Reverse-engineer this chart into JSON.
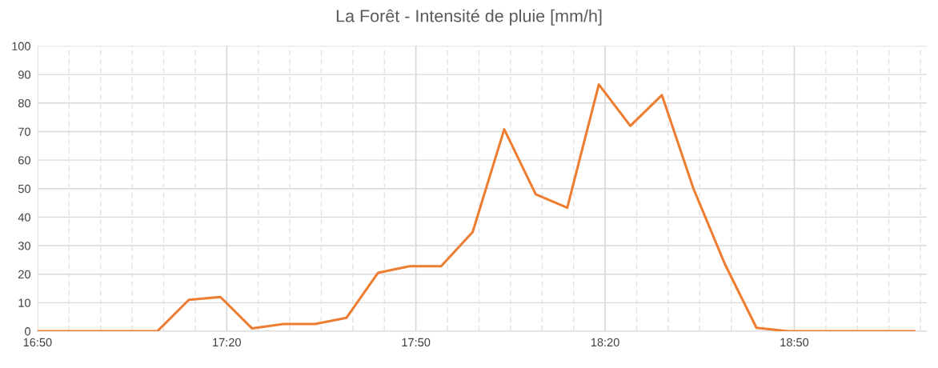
{
  "chart_data": {
    "type": "line",
    "title": "La Forêt - Intensité de pluie [mm/h]",
    "x": [
      16.8333,
      17.15,
      17.2333,
      17.3167,
      17.4,
      17.4833,
      17.5667,
      17.65,
      17.7333,
      17.8167,
      17.9,
      17.9833,
      18.0667,
      18.15,
      18.2333,
      18.3167,
      18.4,
      18.4833,
      18.5667,
      18.65,
      18.7333,
      18.8167,
      18.9,
      18.9833,
      19.0667,
      19.15
    ],
    "series": [
      {
        "color": "#ed7d31",
        "values": [
          0,
          0,
          11,
          12,
          1,
          2.5,
          2.5,
          4.7,
          20.5,
          22.8,
          22.8,
          34.8,
          70.8,
          48,
          43.3,
          86.5,
          72,
          82.8,
          50,
          23.5,
          1.2,
          0,
          0,
          0,
          0,
          0
        ]
      }
    ],
    "xlim": [
      16.8333,
      19.1833
    ],
    "xticks": [
      {
        "value": 16.8333,
        "label": "16:50"
      },
      {
        "value": 16.9167,
        "label": null
      },
      {
        "value": 17,
        "label": null
      },
      {
        "value": 17.0833,
        "label": null
      },
      {
        "value": 17.1667,
        "label": null
      },
      {
        "value": 17.25,
        "label": null
      },
      {
        "value": 17.3333,
        "label": "17:20"
      },
      {
        "value": 17.4167,
        "label": null
      },
      {
        "value": 17.5,
        "label": null
      },
      {
        "value": 17.5833,
        "label": null
      },
      {
        "value": 17.6667,
        "label": null
      },
      {
        "value": 17.75,
        "label": null
      },
      {
        "value": 17.8333,
        "label": "17:50"
      },
      {
        "value": 17.9167,
        "label": null
      },
      {
        "value": 18,
        "label": null
      },
      {
        "value": 18.0833,
        "label": null
      },
      {
        "value": 18.1667,
        "label": null
      },
      {
        "value": 18.25,
        "label": null
      },
      {
        "value": 18.3333,
        "label": "18:20"
      },
      {
        "value": 18.4167,
        "label": null
      },
      {
        "value": 18.5,
        "label": null
      },
      {
        "value": 18.5833,
        "label": null
      },
      {
        "value": 18.6667,
        "label": null
      },
      {
        "value": 18.75,
        "label": null
      },
      {
        "value": 18.8333,
        "label": "18:50"
      },
      {
        "value": 18.9167,
        "label": null
      },
      {
        "value": 19,
        "label": null
      },
      {
        "value": 19.0833,
        "label": null
      },
      {
        "value": 19.1667,
        "label": null
      }
    ],
    "ylim": [
      0,
      100
    ],
    "yticks": [
      0,
      10,
      20,
      30,
      40,
      50,
      60,
      70,
      80,
      90,
      100
    ],
    "grid": true,
    "marker": "none",
    "line_style": "solid"
  }
}
